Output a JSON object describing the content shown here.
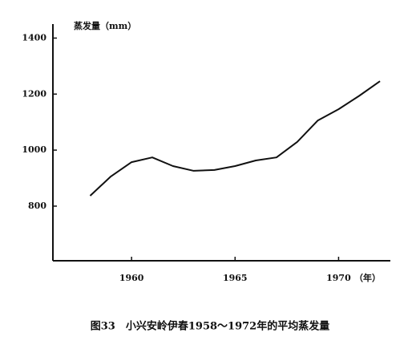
{
  "chart_data": {
    "type": "line",
    "y_label": "蒸发量（mm）",
    "x_unit": "（年）",
    "caption": "图33　小兴安岭伊春1958～1972年的平均蒸发量",
    "x": [
      1958,
      1959,
      1960,
      1961,
      1962,
      1963,
      1964,
      1965,
      1966,
      1967,
      1968,
      1969,
      1970,
      1971,
      1972
    ],
    "values": [
      837,
      906,
      957,
      974,
      943,
      926,
      929,
      943,
      963,
      974,
      1029,
      1106,
      1146,
      1194,
      1246
    ],
    "color": "#111111",
    "xlim": [
      1956.2,
      1972.5
    ],
    "xticks": [
      1960,
      1965,
      1970
    ],
    "ylim": [
      605,
      1450
    ],
    "yticks": [
      800,
      1000,
      1200,
      1400
    ]
  }
}
